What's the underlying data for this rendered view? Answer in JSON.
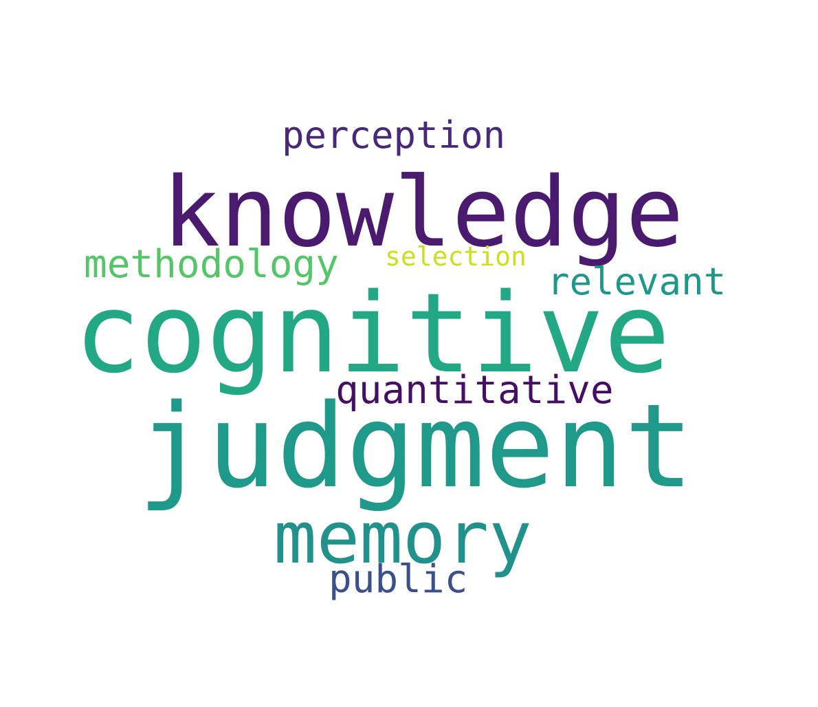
{
  "words": [
    {
      "key": "perception",
      "text": "perception",
      "color": "#482878"
    },
    {
      "key": "knowledge",
      "text": "knowledge",
      "color": "#4a1a6e"
    },
    {
      "key": "methodology",
      "text": "methodology",
      "color": "#54c568"
    },
    {
      "key": "selection",
      "text": "selection",
      "color": "#c9e020"
    },
    {
      "key": "relevant",
      "text": "relevant",
      "color": "#1f978b"
    },
    {
      "key": "cognitive",
      "text": "cognitive",
      "color": "#22a884"
    },
    {
      "key": "quantitative",
      "text": "quantitative",
      "color": "#440f64"
    },
    {
      "key": "judgment",
      "text": "judgment",
      "color": "#1f9a8a"
    },
    {
      "key": "memory",
      "text": "memory",
      "color": "#21918c"
    },
    {
      "key": "public",
      "text": "public",
      "color": "#3b4f8a"
    }
  ]
}
